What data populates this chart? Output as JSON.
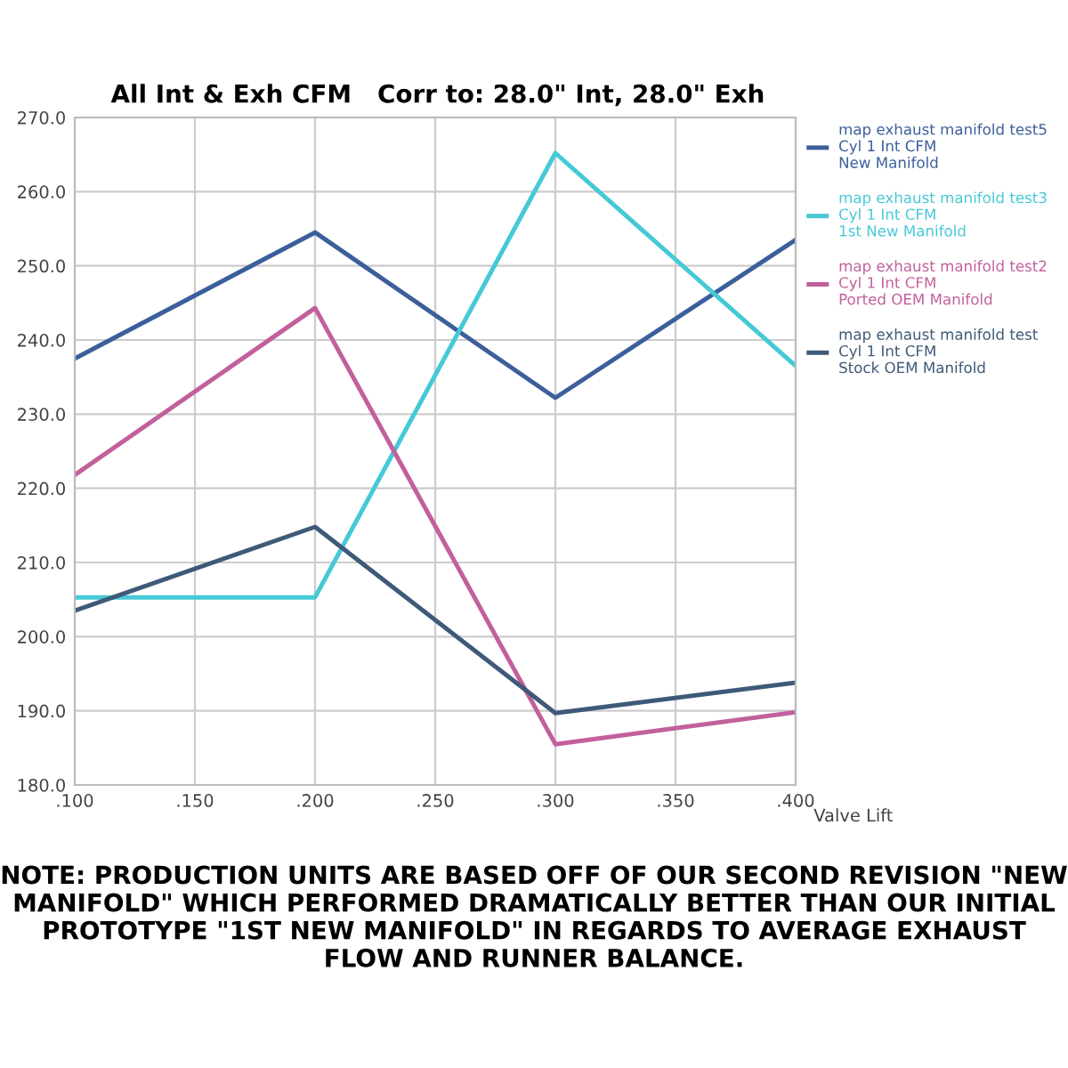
{
  "chart_data": {
    "type": "line",
    "title": "All Int & Exh CFM   Corr to: 28.0\" Int, 28.0\" Exh",
    "xlabel": "Valve Lift",
    "x": [
      0.1,
      0.2,
      0.3,
      0.4
    ],
    "series": [
      {
        "name": "map exhaust manifold test5\nCyl 1 Int CFM\nNew Manifold",
        "color": "#3b5f9a",
        "values": [
          237.5,
          254.5,
          232.2,
          253.5
        ]
      },
      {
        "name": "map exhaust manifold test3\nCyl 1 Int CFM\n1st New Manifold",
        "color": "#45c9d6",
        "values": [
          205.3,
          205.3,
          265.2,
          236.5
        ]
      },
      {
        "name": "map exhaust manifold test2\nCyl 1 Int CFM\nPorted OEM Manifold",
        "color": "#c2609c",
        "values": [
          221.8,
          244.3,
          185.5,
          189.8
        ]
      },
      {
        "name": "map exhaust manifold test\nCyl 1 Int CFM\nStock OEM Manifold",
        "color": "#3f5a78",
        "values": [
          203.5,
          214.8,
          189.7,
          193.8
        ]
      }
    ],
    "xlim": [
      0.1,
      0.4
    ],
    "xticks": [
      {
        "value": 0.1,
        "label": ".100"
      },
      {
        "value": 0.15,
        "label": ".150"
      },
      {
        "value": 0.2,
        "label": ".200"
      },
      {
        "value": 0.25,
        "label": ".250"
      },
      {
        "value": 0.3,
        "label": ".300"
      },
      {
        "value": 0.35,
        "label": ".350"
      },
      {
        "value": 0.4,
        "label": ".400"
      }
    ],
    "ylim": [
      180,
      270
    ],
    "yticks": [
      {
        "value": 180,
        "label": "180.0"
      },
      {
        "value": 190,
        "label": "190.0"
      },
      {
        "value": 200,
        "label": "200.0"
      },
      {
        "value": 210,
        "label": "210.0"
      },
      {
        "value": 220,
        "label": "220.0"
      },
      {
        "value": 230,
        "label": "230.0"
      },
      {
        "value": 240,
        "label": "240.0"
      },
      {
        "value": 250,
        "label": "250.0"
      },
      {
        "value": 260,
        "label": "260.0"
      },
      {
        "value": 270,
        "label": "270.0"
      }
    ],
    "grid": true,
    "legend": "right",
    "line_style": "solid",
    "marker": "none",
    "annotations": [
      "NOTE: PRODUCTION UNITS ARE BASED OFF OF OUR SECOND REVISION \"NEW MANIFOLD\" WHICH PERFORMED DRAMATICALLY BETTER THAN OUR INITIAL PROTOTYPE \"1ST NEW MANIFOLD\" IN REGARDS TO AVERAGE EXHAUST FLOW AND RUNNER BALANCE."
    ]
  }
}
